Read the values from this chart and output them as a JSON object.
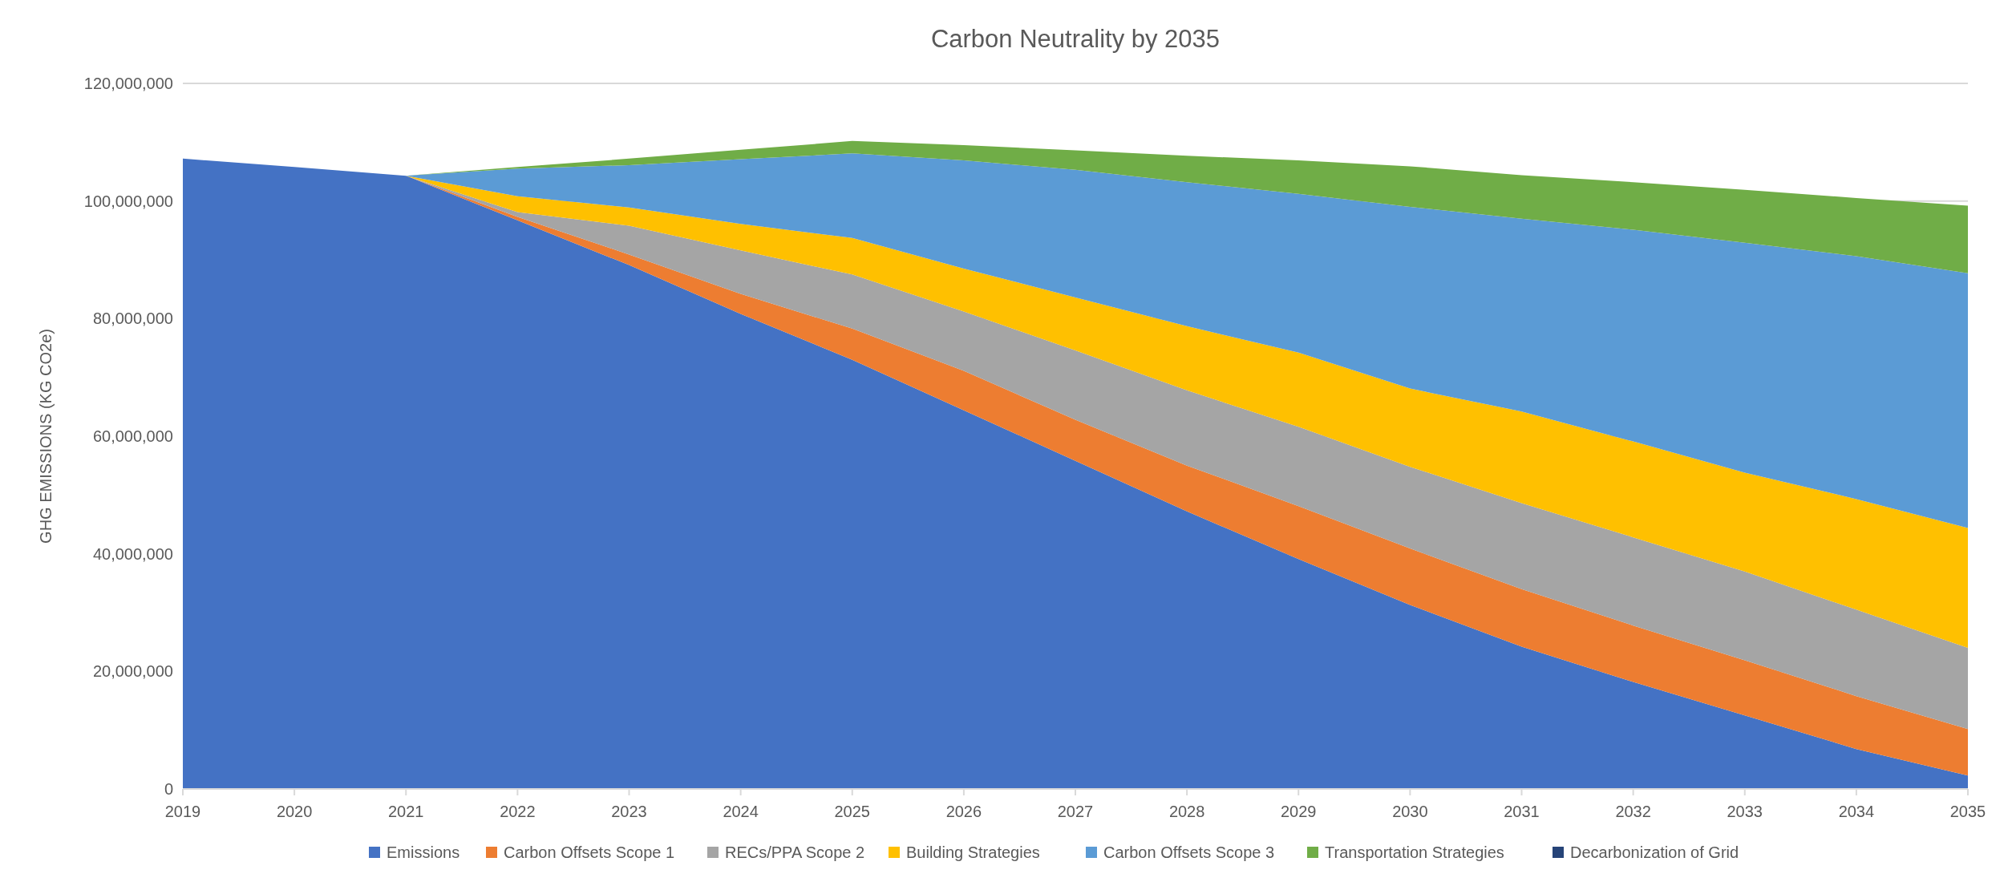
{
  "chart_data": {
    "type": "area",
    "stacked": true,
    "title": "Carbon Neutrality by 2035",
    "ylabel": "GHG EMISSIONS (KG CO2e)",
    "x": [
      2019,
      2020,
      2021,
      2022,
      2023,
      2024,
      2025,
      2026,
      2027,
      2028,
      2029,
      2030,
      2031,
      2032,
      2033,
      2034,
      2035
    ],
    "xlim": [
      2019,
      2035
    ],
    "xticks": [
      2019,
      2020,
      2021,
      2022,
      2023,
      2024,
      2025,
      2026,
      2027,
      2028,
      2029,
      2030,
      2031,
      2032,
      2033,
      2034,
      2035
    ],
    "ylim": [
      0,
      120000000
    ],
    "yticks": [
      {
        "value": 0,
        "label": "0"
      },
      {
        "value": 20000000,
        "label": "20,000,000"
      },
      {
        "value": 40000000,
        "label": "40,000,000"
      },
      {
        "value": 60000000,
        "label": "60,000,000"
      },
      {
        "value": 80000000,
        "label": "80,000,000"
      },
      {
        "value": 100000000,
        "label": "100,000,000"
      },
      {
        "value": 120000000,
        "label": "120,000,000"
      }
    ],
    "grid": "y",
    "legend": "bottom",
    "series": [
      {
        "name": "Emissions",
        "color": "#4472c4",
        "values": [
          107200000,
          105800000,
          104300000,
          96700000,
          89100000,
          80800000,
          73000000,
          64400000,
          55800000,
          47200000,
          39100000,
          31300000,
          24200000,
          18200000,
          12500000,
          6800000,
          2300000
        ]
      },
      {
        "name": "Carbon Offsets Scope 1",
        "color": "#ed7d31",
        "values": [
          0,
          0,
          0,
          600000,
          1800000,
          3400000,
          5300000,
          6700000,
          7000000,
          7800000,
          9000000,
          9600000,
          9800000,
          9600000,
          9400000,
          9000000,
          7900000
        ]
      },
      {
        "name": "RECs/PPA  Scope 2",
        "color": "#a5a5a5",
        "values": [
          0,
          0,
          0,
          800000,
          4900000,
          7400000,
          9200000,
          10100000,
          11800000,
          12800000,
          13500000,
          13900000,
          14600000,
          15000000,
          15100000,
          14700000,
          13800000
        ]
      },
      {
        "name": "Building Strategies",
        "color": "#ffc000",
        "values": [
          0,
          0,
          0,
          2700000,
          3100000,
          4500000,
          6200000,
          7300000,
          9000000,
          10900000,
          12600000,
          13300000,
          15600000,
          16300000,
          16800000,
          18800000,
          20400000
        ]
      },
      {
        "name": "Carbon Offsets Scope 3",
        "color": "#5b9bd5",
        "values": [
          0,
          0,
          0,
          4700000,
          7200000,
          11000000,
          14400000,
          18400000,
          21700000,
          24500000,
          27000000,
          30900000,
          32800000,
          36000000,
          39100000,
          41300000,
          43300000
        ]
      },
      {
        "name": "Transportation Strategies",
        "color": "#70ad47",
        "values": [
          0,
          0,
          0,
          300000,
          1100000,
          1600000,
          2100000,
          2600000,
          3300000,
          4500000,
          5700000,
          6900000,
          7400000,
          8100000,
          9000000,
          9900000,
          11500000
        ]
      },
      {
        "name": "Decarbonization of Grid",
        "color": "#264478",
        "values": [
          null,
          null,
          null,
          null,
          null,
          null,
          null,
          null,
          null,
          null,
          null,
          null,
          null,
          null,
          null,
          null,
          null
        ]
      }
    ]
  }
}
